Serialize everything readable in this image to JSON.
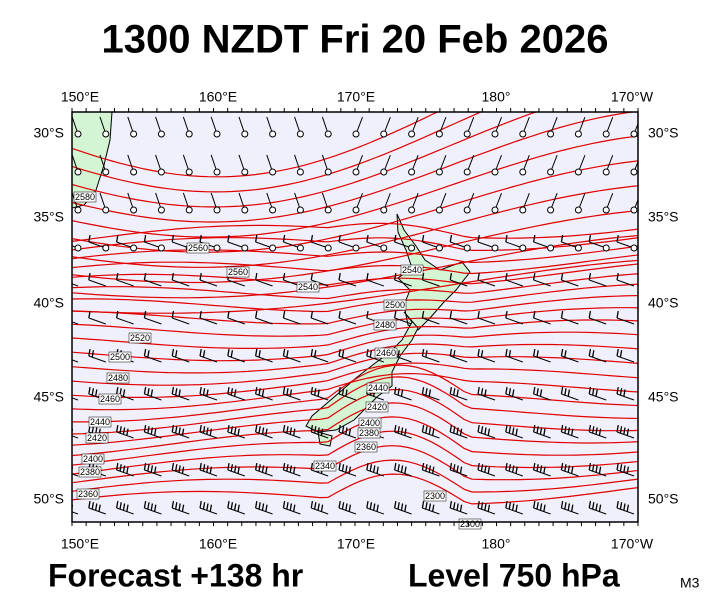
{
  "header": {
    "title": "1300 NZDT Fri 20 Feb 2026"
  },
  "axes": {
    "lon_labels": [
      "150°E",
      "160°E",
      "170°E",
      "180°",
      "170°W"
    ],
    "lat_labels": [
      "30°S",
      "35°S",
      "40°S",
      "45°S",
      "50°S"
    ]
  },
  "contour_labels": [
    "2580",
    "2560",
    "2560",
    "2540",
    "2520",
    "2500",
    "2480",
    "2460",
    "2440",
    "2420",
    "2400",
    "2380",
    "2360",
    "2540",
    "2500",
    "2480",
    "2460",
    "2440",
    "2420",
    "2400",
    "2380",
    "2360",
    "2340",
    "2300",
    "2300"
  ],
  "footer": {
    "forecast": "Forecast +138 hr",
    "level": "Level 750 hPa",
    "code": "M3"
  }
}
